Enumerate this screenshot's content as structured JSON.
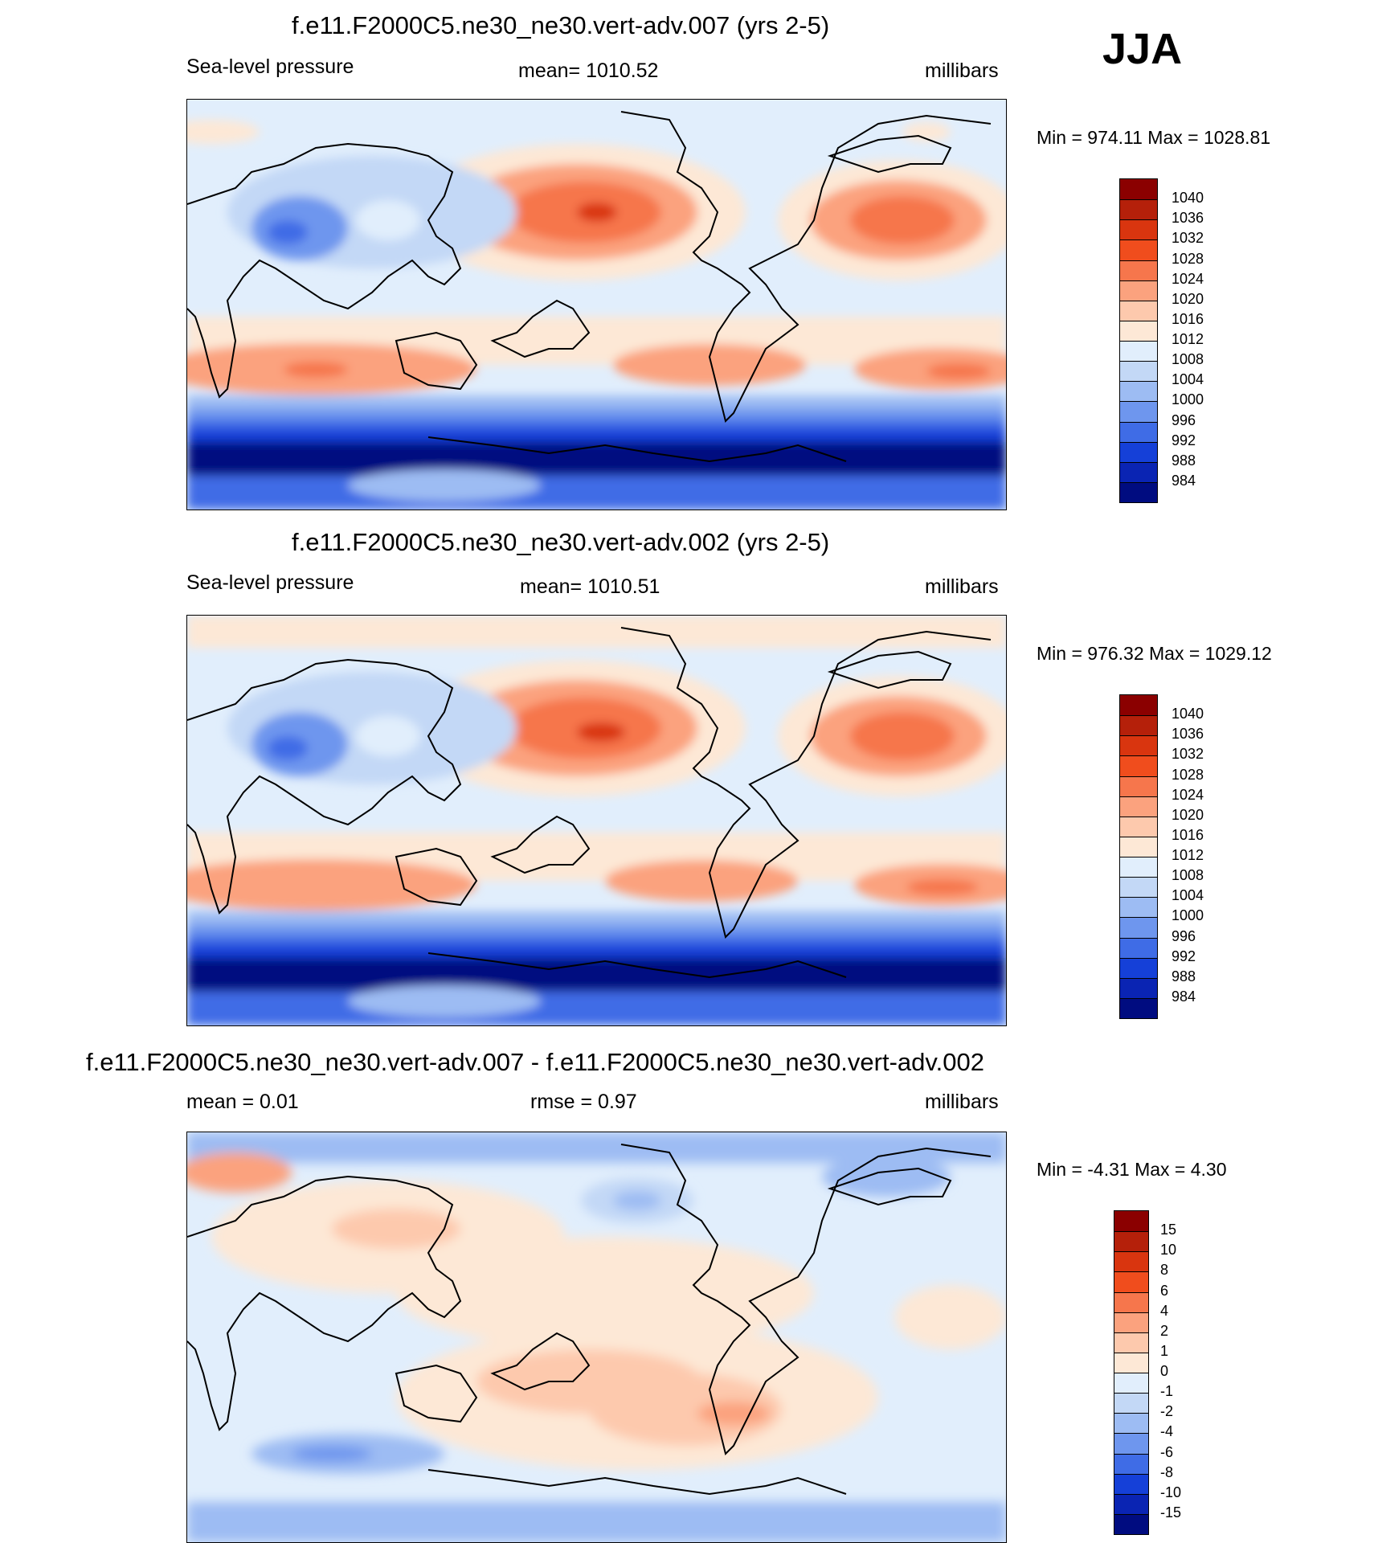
{
  "season": "JJA",
  "units": "millibars",
  "colors": {
    "ocean": "#ffffff",
    "coast": "#000000"
  },
  "panels": [
    {
      "title": "f.e11.F2000C5.ne30_ne30.vert-adv.007 (yrs 2-5)",
      "left_label": "Sea-level pressure",
      "center_label": "mean= 1010.52",
      "right_label": "millibars",
      "minmax": "Min = 974.11 Max = 1028.81",
      "colorbar_labels": [
        "1040",
        "1036",
        "1032",
        "1028",
        "1024",
        "1020",
        "1016",
        "1012",
        "1008",
        "1004",
        "1000",
        "996",
        "992",
        "988",
        "984"
      ],
      "colorbar_colors": [
        "#8b0000",
        "#b5200a",
        "#d9350f",
        "#f04d1d",
        "#f6764c",
        "#fba27e",
        "#fdc9ad",
        "#fde8d6",
        "#e1eefc",
        "#c3d8f6",
        "#9dbcf3",
        "#6e96ee",
        "#3f6ce6",
        "#1540d8",
        "#0a24b3",
        "#000c80"
      ],
      "levels": [
        1040,
        1036,
        1032,
        1028,
        1024,
        1020,
        1016,
        1012,
        1008,
        1004,
        1000,
        996,
        992,
        988,
        984
      ]
    },
    {
      "title": "f.e11.F2000C5.ne30_ne30.vert-adv.002 (yrs 2-5)",
      "left_label": "Sea-level pressure",
      "center_label": "mean= 1010.51",
      "right_label": "millibars",
      "minmax": "Min = 976.32 Max = 1029.12",
      "colorbar_labels": [
        "1040",
        "1036",
        "1032",
        "1028",
        "1024",
        "1020",
        "1016",
        "1012",
        "1008",
        "1004",
        "1000",
        "996",
        "992",
        "988",
        "984"
      ],
      "colorbar_colors": [
        "#8b0000",
        "#b5200a",
        "#d9350f",
        "#f04d1d",
        "#f6764c",
        "#fba27e",
        "#fdc9ad",
        "#fde8d6",
        "#e1eefc",
        "#c3d8f6",
        "#9dbcf3",
        "#6e96ee",
        "#3f6ce6",
        "#1540d8",
        "#0a24b3",
        "#000c80"
      ],
      "levels": [
        1040,
        1036,
        1032,
        1028,
        1024,
        1020,
        1016,
        1012,
        1008,
        1004,
        1000,
        996,
        992,
        988,
        984
      ]
    },
    {
      "title": "f.e11.F2000C5.ne30_ne30.vert-adv.007 - f.e11.F2000C5.ne30_ne30.vert-adv.002",
      "left_label": "mean =   0.01",
      "center_label": "rmse =   0.97",
      "right_label": "millibars",
      "minmax": "Min =  -4.31 Max =   4.30",
      "colorbar_labels": [
        "15",
        "10",
        "8",
        "6",
        "4",
        "2",
        "1",
        "0",
        "-1",
        "-2",
        "-4",
        "-6",
        "-8",
        "-10",
        "-15"
      ],
      "colorbar_colors": [
        "#8b0000",
        "#b5200a",
        "#d9350f",
        "#f04d1d",
        "#f6764c",
        "#fba27e",
        "#fdc9ad",
        "#fde8d6",
        "#e1eefc",
        "#c3d8f6",
        "#9dbcf3",
        "#6e96ee",
        "#3f6ce6",
        "#1540d8",
        "#0a24b3",
        "#000c80"
      ],
      "levels": [
        15,
        10,
        8,
        6,
        4,
        2,
        1,
        0,
        -1,
        -2,
        -4,
        -6,
        -8,
        -10,
        -15
      ]
    }
  ]
}
